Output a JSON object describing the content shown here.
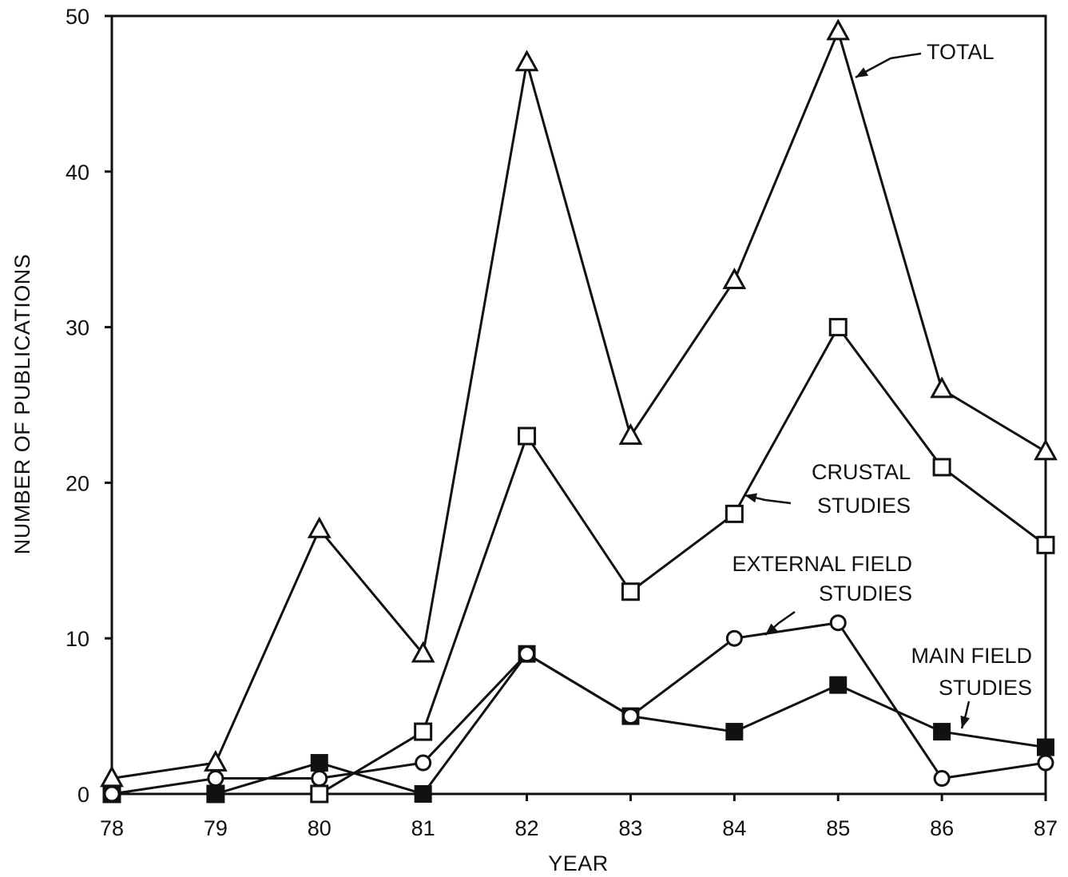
{
  "chart_data": {
    "type": "line",
    "xlabel": "YEAR",
    "ylabel": "NUMBER OF PUBLICATIONS",
    "x": [
      78,
      79,
      80,
      81,
      82,
      83,
      84,
      85,
      86,
      87
    ],
    "xlim": [
      78,
      87
    ],
    "ylim": [
      0,
      50
    ],
    "x_ticks": [
      "78",
      "79",
      "80",
      "81",
      "82",
      "83",
      "84",
      "85",
      "86",
      "87"
    ],
    "y_ticks": [
      "0",
      "10",
      "20",
      "30",
      "40",
      "50"
    ],
    "grid": false,
    "series": [
      {
        "name": "TOTAL",
        "marker": "triangle-open",
        "values": [
          1,
          2,
          17,
          9,
          47,
          23,
          33,
          49,
          26,
          22
        ]
      },
      {
        "name": "CRUSTAL STUDIES",
        "marker": "square-open",
        "values": [
          0,
          0,
          0,
          4,
          23,
          13,
          18,
          30,
          21,
          16
        ]
      },
      {
        "name": "EXTERNAL FIELD STUDIES",
        "marker": "circle-open",
        "values": [
          0,
          1,
          1,
          2,
          9,
          5,
          10,
          11,
          1,
          2
        ]
      },
      {
        "name": "MAIN FIELD STUDIES",
        "marker": "square-filled",
        "values": [
          0,
          0,
          2,
          0,
          9,
          5,
          4,
          7,
          4,
          3
        ]
      }
    ],
    "annotations": [
      {
        "lines": [
          "TOTAL"
        ]
      },
      {
        "lines": [
          "CRUSTAL",
          "STUDIES"
        ]
      },
      {
        "lines": [
          "EXTERNAL FIELD",
          "STUDIES"
        ]
      },
      {
        "lines": [
          "MAIN FIELD",
          "STUDIES"
        ]
      }
    ]
  }
}
